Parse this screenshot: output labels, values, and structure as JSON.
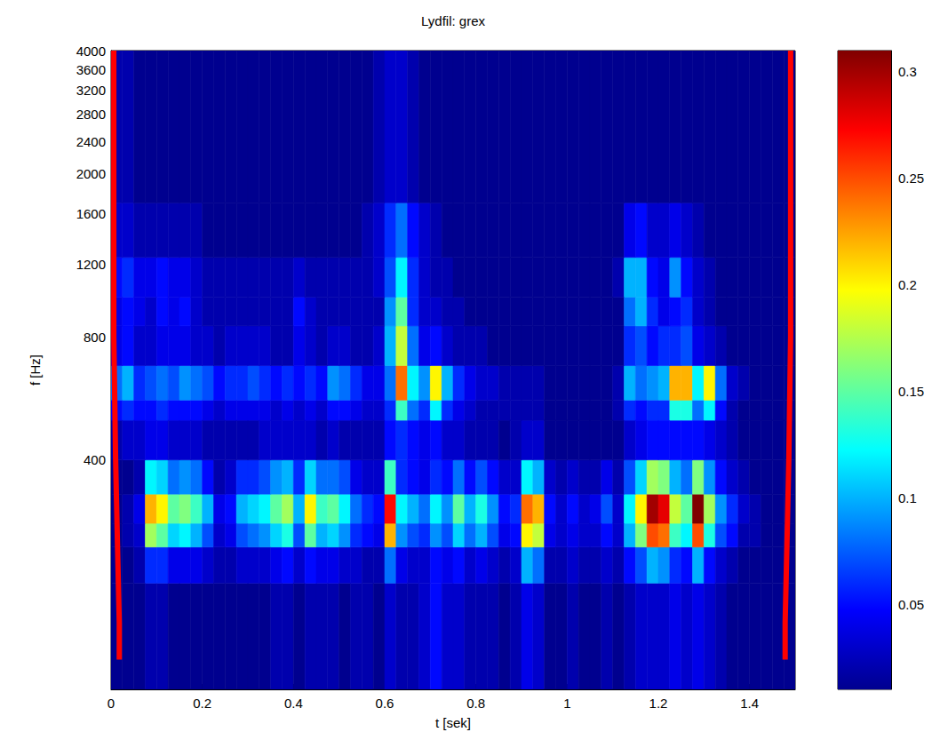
{
  "chart_data": {
    "type": "heatmap",
    "title": "Lydfil: grex",
    "x_label": "t [sek]",
    "y_label": "f [Hz]",
    "log": "y",
    "grid": false,
    "xlim": [
      0,
      1.5
    ],
    "xticks": [
      0,
      0.2,
      0.4,
      0.6,
      0.8,
      1,
      1.2,
      1.4
    ],
    "ylim": [
      110,
      4000
    ],
    "yticks": [
      400,
      800,
      1200,
      1600,
      2000,
      2400,
      2800,
      3200,
      3600,
      4000
    ],
    "t_edges": [
      0,
      0.025,
      0.05,
      0.075,
      0.1,
      0.125,
      0.15,
      0.175,
      0.2,
      0.225,
      0.25,
      0.275,
      0.3,
      0.325,
      0.35,
      0.375,
      0.4,
      0.425,
      0.45,
      0.475,
      0.5,
      0.525,
      0.55,
      0.575,
      0.6,
      0.625,
      0.65,
      0.675,
      0.7,
      0.725,
      0.75,
      0.775,
      0.8,
      0.825,
      0.85,
      0.875,
      0.9,
      0.925,
      0.95,
      0.975,
      1,
      1.025,
      1.05,
      1.075,
      1.1,
      1.125,
      1.15,
      1.175,
      1.2,
      1.225,
      1.25,
      1.275,
      1.3,
      1.325,
      1.35,
      1.375,
      1.4,
      1.425,
      1.45,
      1.475,
      1.5
    ],
    "f_edges": [
      110,
      200,
      245,
      280,
      330,
      400,
      500,
      560,
      680,
      850,
      1000,
      1250,
      1700,
      4000
    ],
    "z": [
      [
        0.01,
        0.01,
        0.01,
        0.02,
        0.02,
        0.01,
        0.01,
        0.01,
        0.01,
        0.01,
        0.01,
        0.01,
        0.01,
        0.01,
        0.02,
        0.02,
        0.01,
        0.02,
        0.02,
        0.02,
        0.01,
        0.02,
        0.02,
        0.01,
        0.03,
        0.02,
        0.02,
        0.03,
        0.05,
        0.03,
        0.03,
        0.02,
        0.02,
        0.02,
        0.01,
        0.02,
        0.04,
        0.03,
        0.01,
        0.01,
        0.02,
        0.01,
        0.01,
        0.02,
        0.01,
        0.02,
        0.03,
        0.03,
        0.03,
        0.04,
        0.03,
        0.04,
        0.03,
        0.02,
        0.01,
        0.01,
        0.01,
        0.01,
        0.01,
        0.01
      ],
      [
        0.01,
        0.01,
        0.02,
        0.06,
        0.06,
        0.04,
        0.04,
        0.04,
        0.03,
        0.02,
        0.02,
        0.03,
        0.03,
        0.03,
        0.04,
        0.05,
        0.03,
        0.05,
        0.04,
        0.04,
        0.03,
        0.03,
        0.02,
        0.02,
        0.08,
        0.04,
        0.03,
        0.03,
        0.05,
        0.04,
        0.05,
        0.03,
        0.04,
        0.03,
        0.02,
        0.03,
        0.1,
        0.08,
        0.02,
        0.02,
        0.03,
        0.02,
        0.02,
        0.03,
        0.02,
        0.05,
        0.07,
        0.1,
        0.09,
        0.06,
        0.05,
        0.1,
        0.05,
        0.03,
        0.02,
        0.01,
        0.01,
        0.01,
        0.01,
        0.01
      ],
      [
        0.01,
        0.02,
        0.03,
        0.17,
        0.15,
        0.11,
        0.12,
        0.1,
        0.07,
        0.03,
        0.04,
        0.07,
        0.08,
        0.09,
        0.11,
        0.13,
        0.07,
        0.15,
        0.1,
        0.11,
        0.09,
        0.06,
        0.05,
        0.04,
        0.22,
        0.09,
        0.07,
        0.06,
        0.09,
        0.07,
        0.11,
        0.08,
        0.1,
        0.07,
        0.04,
        0.05,
        0.2,
        0.18,
        0.04,
        0.03,
        0.04,
        0.03,
        0.03,
        0.05,
        0.03,
        0.1,
        0.16,
        0.25,
        0.24,
        0.14,
        0.12,
        0.25,
        0.13,
        0.07,
        0.05,
        0.02,
        0.02,
        0.01,
        0.01,
        0.01
      ],
      [
        0.01,
        0.02,
        0.04,
        0.22,
        0.2,
        0.15,
        0.16,
        0.14,
        0.1,
        0.04,
        0.05,
        0.1,
        0.11,
        0.12,
        0.15,
        0.17,
        0.1,
        0.2,
        0.14,
        0.15,
        0.12,
        0.08,
        0.06,
        0.05,
        0.27,
        0.12,
        0.1,
        0.08,
        0.12,
        0.09,
        0.15,
        0.1,
        0.13,
        0.09,
        0.05,
        0.06,
        0.24,
        0.22,
        0.05,
        0.03,
        0.05,
        0.03,
        0.04,
        0.07,
        0.03,
        0.12,
        0.2,
        0.3,
        0.28,
        0.18,
        0.15,
        0.31,
        0.17,
        0.09,
        0.06,
        0.03,
        0.02,
        0.01,
        0.01,
        0.01
      ],
      [
        0.01,
        0.01,
        0.02,
        0.12,
        0.11,
        0.08,
        0.09,
        0.08,
        0.05,
        0.02,
        0.03,
        0.06,
        0.06,
        0.07,
        0.09,
        0.1,
        0.06,
        0.11,
        0.08,
        0.08,
        0.07,
        0.04,
        0.03,
        0.03,
        0.14,
        0.06,
        0.05,
        0.04,
        0.06,
        0.05,
        0.08,
        0.05,
        0.07,
        0.05,
        0.03,
        0.03,
        0.12,
        0.1,
        0.03,
        0.02,
        0.03,
        0.02,
        0.02,
        0.04,
        0.02,
        0.07,
        0.11,
        0.17,
        0.16,
        0.1,
        0.08,
        0.16,
        0.09,
        0.05,
        0.03,
        0.02,
        0.01,
        0.01,
        0.01,
        0.01
      ],
      [
        0.02,
        0.03,
        0.03,
        0.04,
        0.04,
        0.03,
        0.03,
        0.03,
        0.02,
        0.02,
        0.02,
        0.02,
        0.02,
        0.03,
        0.03,
        0.03,
        0.03,
        0.03,
        0.02,
        0.03,
        0.02,
        0.02,
        0.02,
        0.02,
        0.05,
        0.06,
        0.05,
        0.04,
        0.05,
        0.03,
        0.03,
        0.02,
        0.02,
        0.02,
        0.01,
        0.02,
        0.03,
        0.03,
        0.01,
        0.01,
        0.01,
        0.01,
        0.01,
        0.01,
        0.01,
        0.03,
        0.04,
        0.05,
        0.05,
        0.05,
        0.05,
        0.05,
        0.04,
        0.03,
        0.02,
        0.01,
        0.01,
        0.01,
        0.01,
        0.01
      ],
      [
        0.05,
        0.06,
        0.05,
        0.05,
        0.06,
        0.05,
        0.05,
        0.05,
        0.04,
        0.03,
        0.04,
        0.04,
        0.04,
        0.04,
        0.03,
        0.04,
        0.03,
        0.04,
        0.03,
        0.05,
        0.05,
        0.04,
        0.03,
        0.03,
        0.06,
        0.14,
        0.08,
        0.06,
        0.12,
        0.06,
        0.04,
        0.03,
        0.02,
        0.02,
        0.02,
        0.02,
        0.02,
        0.02,
        0.01,
        0.01,
        0.01,
        0.01,
        0.01,
        0.01,
        0.02,
        0.06,
        0.05,
        0.06,
        0.06,
        0.13,
        0.13,
        0.08,
        0.12,
        0.05,
        0.02,
        0.01,
        0.01,
        0.01,
        0.01,
        0.01
      ],
      [
        0.08,
        0.1,
        0.06,
        0.07,
        0.08,
        0.07,
        0.09,
        0.08,
        0.07,
        0.05,
        0.06,
        0.06,
        0.07,
        0.06,
        0.05,
        0.06,
        0.05,
        0.06,
        0.05,
        0.09,
        0.08,
        0.06,
        0.04,
        0.04,
        0.08,
        0.24,
        0.12,
        0.09,
        0.2,
        0.1,
        0.06,
        0.04,
        0.03,
        0.03,
        0.02,
        0.02,
        0.02,
        0.02,
        0.01,
        0.01,
        0.01,
        0.01,
        0.01,
        0.01,
        0.02,
        0.1,
        0.08,
        0.09,
        0.1,
        0.22,
        0.22,
        0.12,
        0.2,
        0.08,
        0.03,
        0.02,
        0.01,
        0.01,
        0.01,
        0.01
      ],
      [
        0.04,
        0.05,
        0.03,
        0.03,
        0.04,
        0.04,
        0.04,
        0.03,
        0.03,
        0.02,
        0.03,
        0.03,
        0.03,
        0.03,
        0.02,
        0.02,
        0.04,
        0.03,
        0.02,
        0.03,
        0.03,
        0.02,
        0.02,
        0.03,
        0.1,
        0.18,
        0.08,
        0.04,
        0.05,
        0.03,
        0.02,
        0.02,
        0.02,
        0.01,
        0.01,
        0.01,
        0.01,
        0.01,
        0.01,
        0.01,
        0.01,
        0.01,
        0.01,
        0.01,
        0.01,
        0.06,
        0.07,
        0.05,
        0.06,
        0.06,
        0.07,
        0.04,
        0.03,
        0.02,
        0.01,
        0.01,
        0.01,
        0.01,
        0.01,
        0.01
      ],
      [
        0.04,
        0.05,
        0.04,
        0.03,
        0.05,
        0.04,
        0.05,
        0.03,
        0.02,
        0.02,
        0.02,
        0.02,
        0.02,
        0.02,
        0.02,
        0.02,
        0.05,
        0.03,
        0.02,
        0.02,
        0.02,
        0.02,
        0.02,
        0.02,
        0.09,
        0.15,
        0.06,
        0.03,
        0.03,
        0.02,
        0.02,
        0.01,
        0.01,
        0.01,
        0.01,
        0.01,
        0.01,
        0.01,
        0.01,
        0.01,
        0.01,
        0.01,
        0.01,
        0.01,
        0.01,
        0.08,
        0.1,
        0.06,
        0.04,
        0.05,
        0.06,
        0.03,
        0.02,
        0.01,
        0.01,
        0.01,
        0.01,
        0.01,
        0.01,
        0.01
      ],
      [
        0.05,
        0.06,
        0.04,
        0.04,
        0.05,
        0.04,
        0.04,
        0.03,
        0.02,
        0.02,
        0.02,
        0.02,
        0.02,
        0.02,
        0.02,
        0.02,
        0.03,
        0.02,
        0.02,
        0.02,
        0.02,
        0.02,
        0.02,
        0.03,
        0.07,
        0.12,
        0.06,
        0.03,
        0.02,
        0.02,
        0.01,
        0.01,
        0.01,
        0.01,
        0.01,
        0.01,
        0.01,
        0.01,
        0.01,
        0.01,
        0.01,
        0.01,
        0.01,
        0.01,
        0.02,
        0.1,
        0.1,
        0.05,
        0.04,
        0.09,
        0.05,
        0.03,
        0.02,
        0.01,
        0.01,
        0.01,
        0.01,
        0.01,
        0.01,
        0.01
      ],
      [
        0.03,
        0.03,
        0.02,
        0.02,
        0.02,
        0.02,
        0.02,
        0.02,
        0.01,
        0.01,
        0.01,
        0.01,
        0.01,
        0.01,
        0.01,
        0.01,
        0.01,
        0.01,
        0.01,
        0.01,
        0.01,
        0.01,
        0.02,
        0.03,
        0.06,
        0.08,
        0.05,
        0.03,
        0.02,
        0.01,
        0.01,
        0.01,
        0.01,
        0.01,
        0.01,
        0.01,
        0.01,
        0.01,
        0.01,
        0.01,
        0.01,
        0.01,
        0.01,
        0.01,
        0.01,
        0.04,
        0.05,
        0.03,
        0.03,
        0.04,
        0.03,
        0.02,
        0.01,
        0.01,
        0.01,
        0.01,
        0.01,
        0.01,
        0.01,
        0.01
      ],
      [
        0.02,
        0.02,
        0.01,
        0.01,
        0.01,
        0.01,
        0.01,
        0.01,
        0.01,
        0.01,
        0.01,
        0.01,
        0.01,
        0.01,
        0.01,
        0.01,
        0.01,
        0.01,
        0.01,
        0.01,
        0.01,
        0.01,
        0.01,
        0.02,
        0.03,
        0.03,
        0.02,
        0.01,
        0.01,
        0.01,
        0.01,
        0.01,
        0.01,
        0.01,
        0.01,
        0.01,
        0.01,
        0.01,
        0.01,
        0.01,
        0.01,
        0.01,
        0.01,
        0.01,
        0.01,
        0.01,
        0.01,
        0.01,
        0.01,
        0.01,
        0.01,
        0.01,
        0.01,
        0.01,
        0.01,
        0.01,
        0.01,
        0.01,
        0.01,
        0.01
      ]
    ],
    "colorbar": {
      "range": [
        0.01,
        0.31
      ],
      "ticks": [
        0.05,
        0.1,
        0.15,
        0.2,
        0.25,
        0.3
      ]
    },
    "series": [
      {
        "type": "line",
        "color": "#ff0000",
        "x": [
          0.006,
          0.006,
          0.01,
          0.014,
          0.018,
          0.018
        ],
        "y": [
          4000,
          800,
          400,
          250,
          160,
          130
        ]
      },
      {
        "type": "line",
        "color": "#ff0000",
        "x": [
          1.49,
          1.49,
          1.486,
          1.482,
          1.478,
          1.478
        ],
        "y": [
          4000,
          800,
          400,
          250,
          160,
          130
        ]
      }
    ]
  }
}
